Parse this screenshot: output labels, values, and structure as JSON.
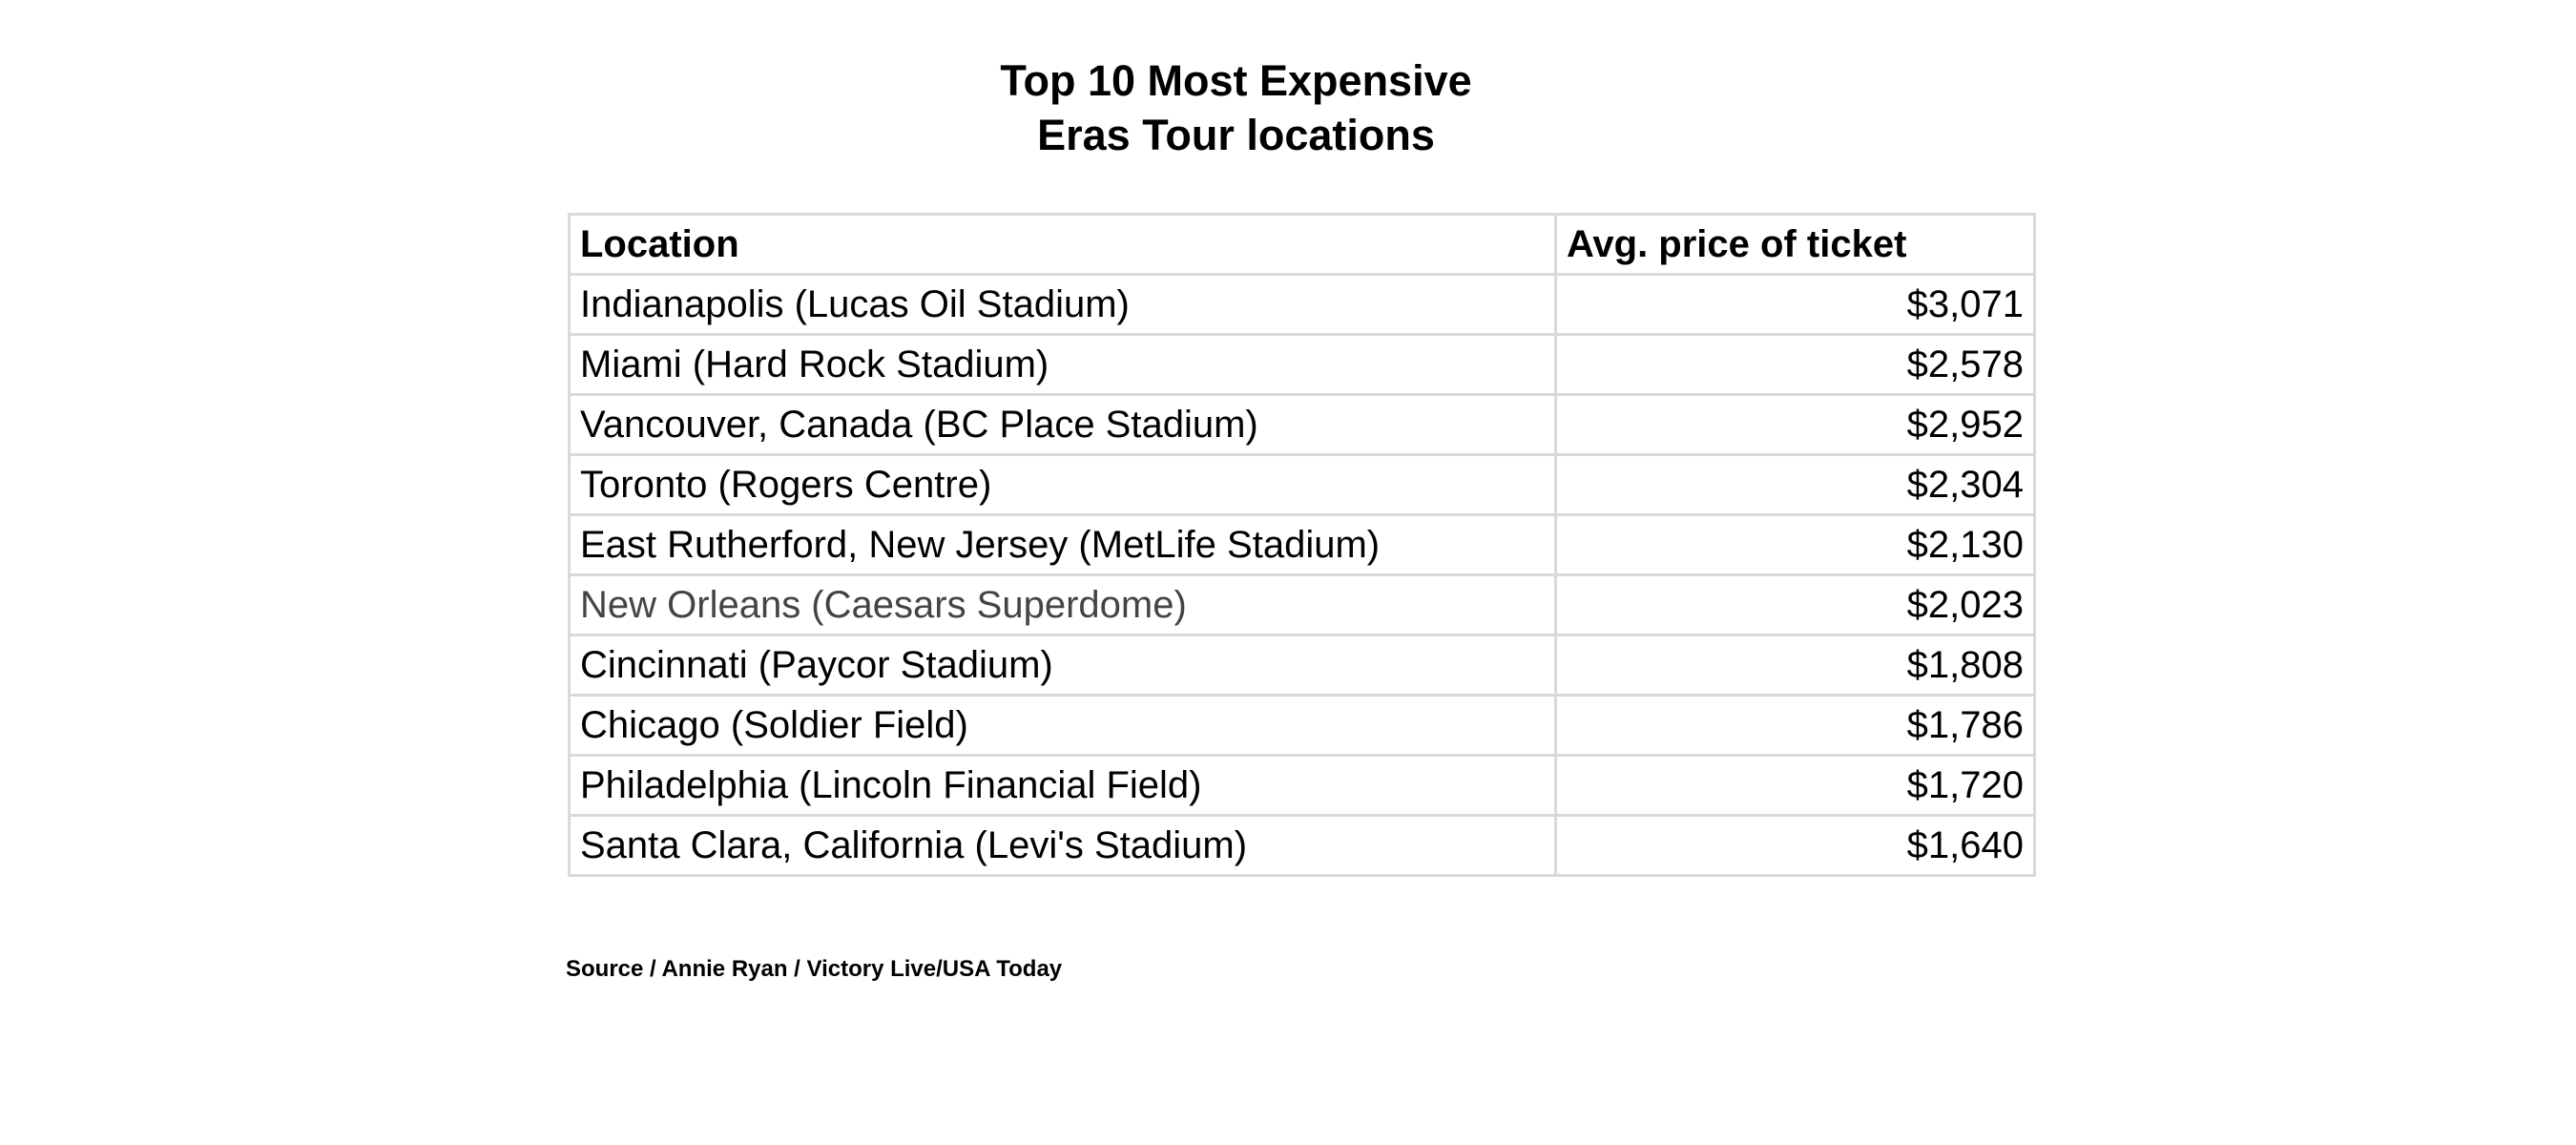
{
  "chart_data": {
    "type": "table",
    "title_lines": [
      "Top 10 Most Expensive",
      "Eras Tour locations"
    ],
    "columns": [
      "Location",
      "Avg. price of ticket"
    ],
    "rows": [
      {
        "location": "Indianapolis (Lucas Oil Stadium)",
        "price": "$3,071",
        "value": 3071
      },
      {
        "location": "Miami (Hard Rock Stadium)",
        "price": "$2,578",
        "value": 2578
      },
      {
        "location": "Vancouver, Canada (BC Place Stadium)",
        "price": "$2,952",
        "value": 2952
      },
      {
        "location": "Toronto (Rogers Centre)",
        "price": "$2,304",
        "value": 2304
      },
      {
        "location": "East Rutherford, New Jersey (MetLife Stadium)",
        "price": "$2,130",
        "value": 2130
      },
      {
        "location": "New Orleans (Caesars Superdome)",
        "price": "$2,023",
        "value": 2023
      },
      {
        "location": "Cincinnati (Paycor Stadium)",
        "price": "$1,808",
        "value": 1808
      },
      {
        "location": "Chicago (Soldier Field)",
        "price": "$1,786",
        "value": 1786
      },
      {
        "location": "Philadelphia (Lincoln Financial Field)",
        "price": "$1,720",
        "value": 1720
      },
      {
        "location": "Santa Clara, California (Levi's Stadium)",
        "price": "$1,640",
        "value": 1640
      }
    ],
    "source": "Source / Annie Ryan / Victory Live/USA Today",
    "colors": {
      "text": "#000000",
      "muted_text": "#444444",
      "grid": "#d9d9d9"
    },
    "muted_row_index": 5
  }
}
